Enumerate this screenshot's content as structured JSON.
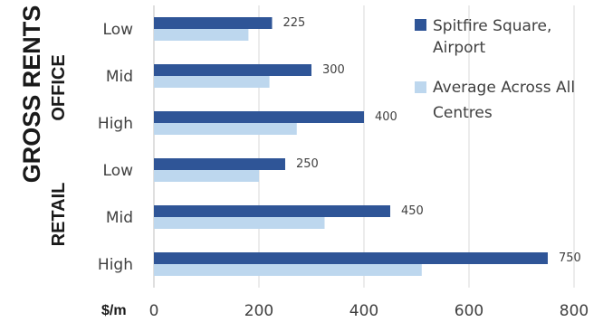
{
  "chart_data": {
    "type": "bar",
    "orientation": "horizontal",
    "ylabel": "GROSS RENTS",
    "xlabel": "$/m",
    "groups": [
      {
        "label": "OFFICE",
        "categories": [
          "Low",
          "Mid",
          "High"
        ]
      },
      {
        "label": "RETAIL",
        "categories": [
          "Low",
          "Mid",
          "High"
        ]
      }
    ],
    "series": [
      {
        "name": "Spitfire Square, Airport",
        "color": "#2f5597",
        "values": [
          225,
          300,
          400,
          250,
          450,
          750
        ],
        "labels": [
          "225",
          "300",
          "400",
          "250",
          "450",
          "750"
        ]
      },
      {
        "name": "Average Across All Centres",
        "color": "#bdd7ee",
        "values": [
          180,
          220,
          272,
          200,
          325,
          510
        ]
      }
    ],
    "xlim": [
      0,
      800
    ],
    "xticks": [
      "0",
      "200",
      "400",
      "600",
      "800"
    ],
    "grid": true,
    "legend": {
      "position": "top-right",
      "items": [
        {
          "lines": [
            "Spitfire Square,",
            "Airport"
          ]
        },
        {
          "lines": [
            "Average Across All",
            "Centres"
          ]
        }
      ]
    }
  }
}
